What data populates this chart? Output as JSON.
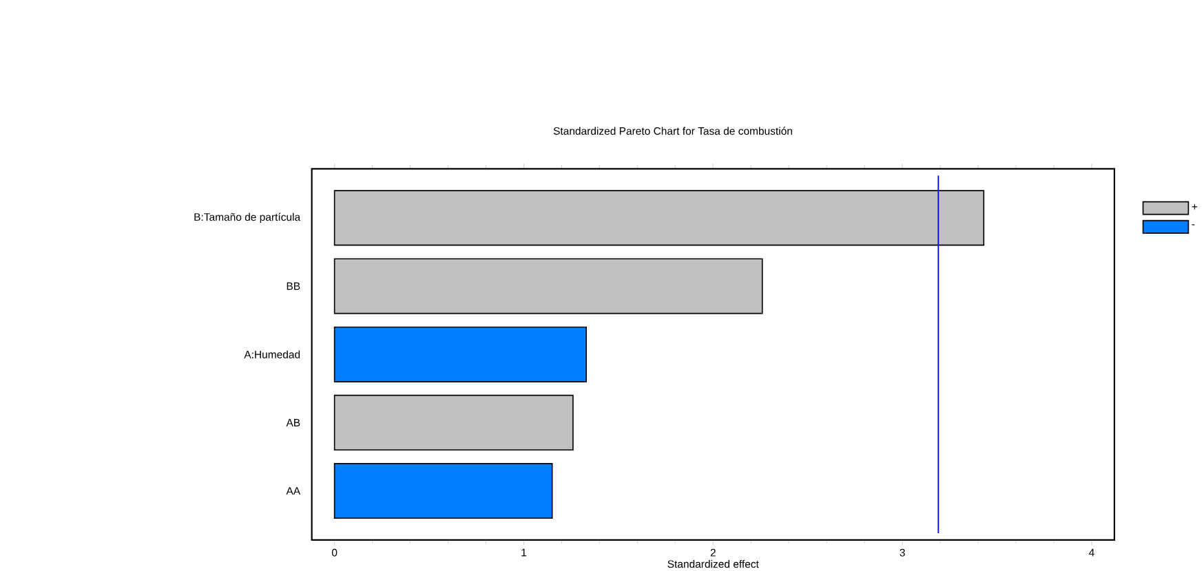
{
  "chart_data": {
    "type": "bar",
    "orientation": "horizontal",
    "title": "Standardized Pareto Chart for Tasa de combustión",
    "xlabel": "Standardized effect",
    "categories": [
      "B:Tamaño de partícula",
      "BB",
      "A:Humedad",
      "AB",
      "AA"
    ],
    "series": [
      {
        "name": "+",
        "color": "#c0c0c0",
        "values": [
          3.43,
          2.26,
          null,
          1.26,
          null
        ]
      },
      {
        "name": "-",
        "color": "#0080ff",
        "values": [
          null,
          null,
          1.33,
          null,
          1.15
        ]
      }
    ],
    "xlim": [
      -0.12,
      4.12
    ],
    "xticks": [
      0,
      1,
      2,
      3,
      4
    ],
    "ref_lines": [
      {
        "axis": "x",
        "value": 3.19,
        "color": "#0000ff"
      }
    ],
    "legend": "top right"
  }
}
